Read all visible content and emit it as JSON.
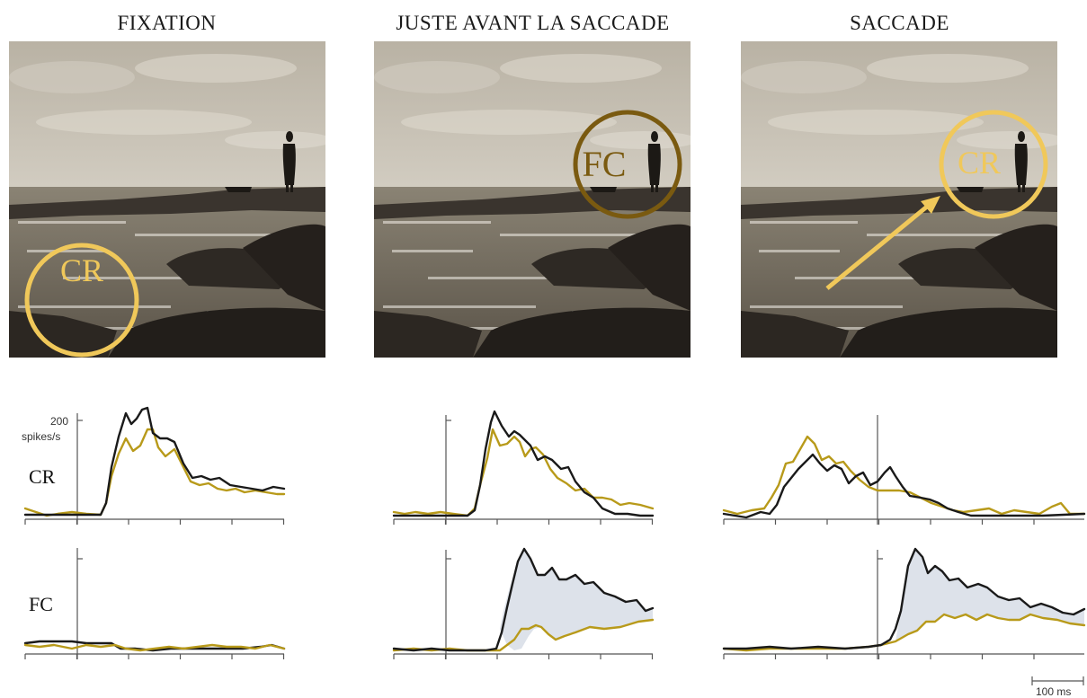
{
  "columns": [
    {
      "title": "FIXATION"
    },
    {
      "title": "JUSTE AVANT LA SACCADE"
    },
    {
      "title": "SACCADE"
    }
  ],
  "markers": {
    "cr_label": "CR",
    "fc_label": "FC"
  },
  "rows": {
    "cr_label": "CR",
    "fc_label": "FC"
  },
  "scale": {
    "y_value": "200",
    "y_unit": "spikes/s",
    "time_bar": "100 ms"
  },
  "colors": {
    "cr_ring": "#f0c85a",
    "fc_ring": "#7a5a10",
    "trace_black": "#1a1a1a",
    "trace_gold": "#b89a1a",
    "shade": "#dde2ea",
    "sky": "#c9c4b8",
    "sea": "#6e6659",
    "rock": "#2a2521"
  }
}
